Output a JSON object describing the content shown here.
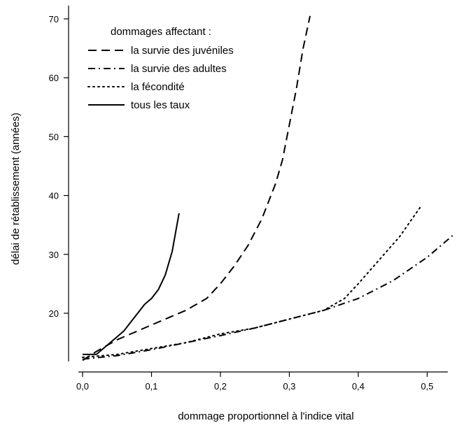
{
  "chart_data": {
    "type": "line",
    "xlabel": "dommage proportionnel à l'indice vital",
    "ylabel": "délai de rétablissement (années)",
    "xlim": [
      0.0,
      0.54
    ],
    "ylim": [
      11.5,
      71
    ],
    "x_ticks": [
      0.0,
      0.1,
      0.2,
      0.3,
      0.4,
      0.5
    ],
    "x_tick_labels": [
      "0,0",
      "0,1",
      "0,2",
      "0,3",
      "0,4",
      "0,5"
    ],
    "y_ticks": [
      20,
      30,
      40,
      50,
      60,
      70
    ],
    "y_tick_labels": [
      "20",
      "30",
      "40",
      "50",
      "60",
      "70"
    ],
    "grid": false,
    "legend_title": "dommages affectant :",
    "legend_position": "top-left",
    "series": [
      {
        "name": "la survie des juvéniles",
        "style": "dashed",
        "x": [
          0.0,
          0.02,
          0.05,
          0.08,
          0.1,
          0.12,
          0.15,
          0.18,
          0.2,
          0.22,
          0.24,
          0.26,
          0.28,
          0.29,
          0.3,
          0.31,
          0.32,
          0.33
        ],
        "y": [
          12.0,
          13.5,
          15.5,
          17.0,
          18.0,
          19.0,
          20.5,
          22.5,
          25.0,
          28.0,
          31.5,
          36.0,
          42.0,
          46.0,
          52.0,
          58.0,
          65.0,
          70.5
        ]
      },
      {
        "name": "la survie des adultes",
        "style": "dash-dot",
        "x": [
          0.0,
          0.05,
          0.1,
          0.15,
          0.2,
          0.25,
          0.3,
          0.35,
          0.4,
          0.45,
          0.5,
          0.54
        ],
        "y": [
          12.2,
          12.8,
          13.8,
          15.0,
          16.2,
          17.5,
          19.0,
          20.5,
          22.5,
          25.5,
          29.5,
          33.5
        ]
      },
      {
        "name": "la fécondité",
        "style": "dotted",
        "x": [
          0.0,
          0.05,
          0.1,
          0.15,
          0.2,
          0.25,
          0.3,
          0.35,
          0.38,
          0.4,
          0.43,
          0.46,
          0.49
        ],
        "y": [
          12.5,
          13.0,
          14.0,
          15.0,
          16.5,
          17.5,
          19.0,
          20.5,
          22.5,
          25.0,
          29.0,
          33.0,
          38.0
        ]
      },
      {
        "name": "tous les taux",
        "style": "solid",
        "x": [
          0.0,
          0.02,
          0.03,
          0.04,
          0.05,
          0.06,
          0.07,
          0.08,
          0.09,
          0.1,
          0.11,
          0.12,
          0.13,
          0.14
        ],
        "y": [
          13.0,
          13.0,
          14.0,
          15.0,
          16.0,
          17.0,
          18.5,
          20.0,
          21.5,
          22.5,
          24.0,
          26.5,
          30.5,
          37.0
        ]
      }
    ]
  }
}
